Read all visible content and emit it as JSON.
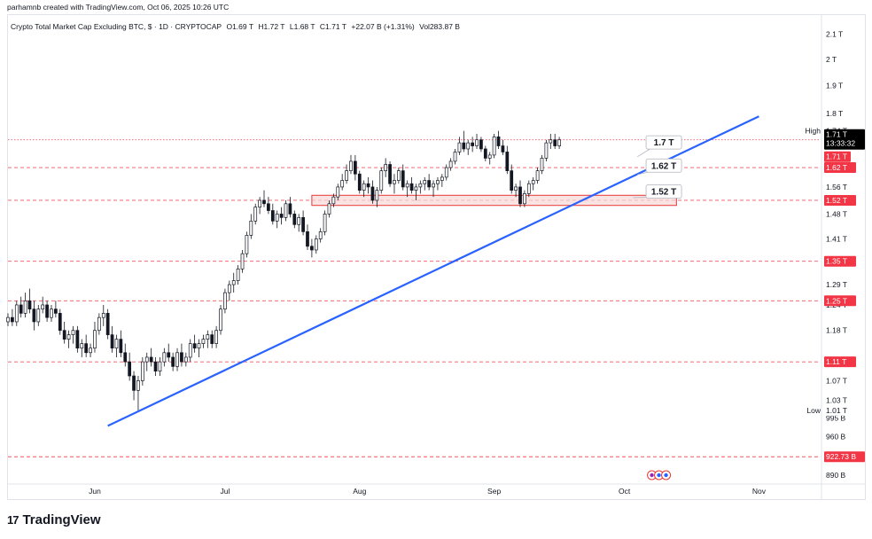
{
  "header": {
    "created_text": "parhamnb created with TradingView.com, Oct 06, 2025 10:26 UTC"
  },
  "legend": {
    "title": "Crypto Total Market Cap Excluding BTC, $ · 1D · CRYPTOCAP",
    "open": "O1.69 T",
    "high": "H1.72 T",
    "low": "L1.68 T",
    "close": "C1.71 T",
    "change": "+22.07 B (+1.31%)",
    "volume": "Vol283.87 B"
  },
  "footer": {
    "logo_text": "TradingView",
    "logo_mark": "17"
  },
  "colors": {
    "up": "#131722",
    "down": "#131722",
    "trendline": "#2962ff",
    "level_line": "#f23645",
    "zone_fill": "#f8d7d7",
    "zone_border": "#e53935",
    "callout_border": "#b2b5be"
  },
  "chart_data": {
    "type": "candlestick",
    "y_scale": "log",
    "ylim": [
      0.875,
      2.18
    ],
    "x_range": [
      "2025-05-12",
      "2025-11-15"
    ],
    "x_ticks": [
      {
        "date": "2025-06-01",
        "label": "Jun"
      },
      {
        "date": "2025-07-01",
        "label": "Jul"
      },
      {
        "date": "2025-08-01",
        "label": "Aug"
      },
      {
        "date": "2025-09-01",
        "label": "Sep"
      },
      {
        "date": "2025-10-01",
        "label": "Oct"
      },
      {
        "date": "2025-11-01",
        "label": "Nov"
      }
    ],
    "y_ticks": [
      {
        "value": 2.1,
        "label": "2.1 T"
      },
      {
        "value": 2.0,
        "label": "2 T"
      },
      {
        "value": 1.9,
        "label": "1.9 T"
      },
      {
        "value": 1.8,
        "label": "1.8 T"
      },
      {
        "value": 1.56,
        "label": "1.56 T"
      },
      {
        "value": 1.48,
        "label": "1.48 T"
      },
      {
        "value": 1.41,
        "label": "1.41 T"
      },
      {
        "value": 1.29,
        "label": "1.29 T"
      },
      {
        "value": 1.24,
        "label": "1.24 T"
      },
      {
        "value": 1.18,
        "label": "1.18 T"
      },
      {
        "value": 1.07,
        "label": "1.07 T"
      },
      {
        "value": 1.03,
        "label": "1.03 T"
      },
      {
        "value": 0.995,
        "label": "995 B"
      },
      {
        "value": 0.96,
        "label": "960 B"
      },
      {
        "value": 0.89,
        "label": "890 B"
      }
    ],
    "price_labels": [
      {
        "value": 1.74,
        "label": "1.74 T",
        "prefix": "High",
        "style": "plain"
      },
      {
        "value": 1.62,
        "label": "1.62 T",
        "style": "red"
      },
      {
        "value": 1.52,
        "label": "1.52 T",
        "style": "red"
      },
      {
        "value": 1.35,
        "label": "1.35 T",
        "style": "red"
      },
      {
        "value": 1.25,
        "label": "1.25 T",
        "style": "red"
      },
      {
        "value": 1.11,
        "label": "1.11 T",
        "style": "red"
      },
      {
        "value": 1.01,
        "label": "1.01 T",
        "prefix": "Low",
        "style": "plain"
      },
      {
        "value": 0.9227,
        "label": "922.73 B",
        "style": "red"
      }
    ],
    "current_price": {
      "value": 1.71,
      "label": "1.71 T",
      "countdown": "13:33:32"
    },
    "current_price_tag": {
      "label": "1.71 T"
    },
    "horizontal_levels": [
      1.71,
      1.62,
      1.52,
      1.35,
      1.25,
      1.11,
      0.9227
    ],
    "zone": {
      "from": "2025-07-21",
      "to": "2025-10-13",
      "low": 1.505,
      "high": 1.535
    },
    "trendline": {
      "start": [
        "2025-06-04",
        0.98
      ],
      "end": [
        "2025-11-01",
        1.79
      ]
    },
    "callouts": [
      {
        "label": "1.7 T",
        "date": "2025-10-06",
        "value": 1.7,
        "anchor_date": "2025-10-04",
        "anchor_value": 1.655
      },
      {
        "label": "1.62 T",
        "date": "2025-10-06",
        "value": 1.625,
        "anchor_date": "2025-10-04",
        "anchor_value": 1.598
      },
      {
        "label": "1.52 T",
        "date": "2025-10-06",
        "value": 1.545,
        "anchor_date": "2025-10-03",
        "anchor_value": 1.528
      }
    ],
    "series": [
      {
        "name": "",
        "start_date": "2025-05-12",
        "ohlc": [
          [
            1.2,
            1.22,
            1.19,
            1.21
          ],
          [
            1.21,
            1.23,
            1.19,
            1.2
          ],
          [
            1.2,
            1.25,
            1.19,
            1.24
          ],
          [
            1.24,
            1.26,
            1.21,
            1.22
          ],
          [
            1.22,
            1.27,
            1.21,
            1.25
          ],
          [
            1.25,
            1.28,
            1.22,
            1.23
          ],
          [
            1.23,
            1.25,
            1.18,
            1.2
          ],
          [
            1.2,
            1.24,
            1.19,
            1.23
          ],
          [
            1.23,
            1.26,
            1.22,
            1.24
          ],
          [
            1.24,
            1.25,
            1.2,
            1.21
          ],
          [
            1.21,
            1.24,
            1.2,
            1.23
          ],
          [
            1.23,
            1.25,
            1.21,
            1.22
          ],
          [
            1.22,
            1.23,
            1.17,
            1.18
          ],
          [
            1.18,
            1.2,
            1.15,
            1.16
          ],
          [
            1.16,
            1.18,
            1.14,
            1.17
          ],
          [
            1.17,
            1.19,
            1.15,
            1.18
          ],
          [
            1.18,
            1.19,
            1.13,
            1.14
          ],
          [
            1.14,
            1.16,
            1.12,
            1.15
          ],
          [
            1.15,
            1.17,
            1.12,
            1.13
          ],
          [
            1.13,
            1.15,
            1.12,
            1.14
          ],
          [
            1.14,
            1.2,
            1.13,
            1.18
          ],
          [
            1.18,
            1.22,
            1.17,
            1.21
          ],
          [
            1.21,
            1.24,
            1.19,
            1.22
          ],
          [
            1.22,
            1.23,
            1.16,
            1.17
          ],
          [
            1.17,
            1.19,
            1.13,
            1.14
          ],
          [
            1.14,
            1.17,
            1.12,
            1.16
          ],
          [
            1.16,
            1.18,
            1.12,
            1.13
          ],
          [
            1.13,
            1.15,
            1.1,
            1.11
          ],
          [
            1.11,
            1.13,
            1.07,
            1.08
          ],
          [
            1.08,
            1.09,
            1.03,
            1.05
          ],
          [
            1.05,
            1.08,
            1.01,
            1.07
          ],
          [
            1.07,
            1.12,
            1.06,
            1.11
          ],
          [
            1.11,
            1.13,
            1.09,
            1.12
          ],
          [
            1.12,
            1.14,
            1.1,
            1.11
          ],
          [
            1.11,
            1.12,
            1.08,
            1.09
          ],
          [
            1.09,
            1.12,
            1.08,
            1.11
          ],
          [
            1.11,
            1.14,
            1.1,
            1.13
          ],
          [
            1.13,
            1.15,
            1.11,
            1.12
          ],
          [
            1.12,
            1.13,
            1.09,
            1.1
          ],
          [
            1.1,
            1.14,
            1.09,
            1.13
          ],
          [
            1.13,
            1.15,
            1.1,
            1.11
          ],
          [
            1.11,
            1.13,
            1.1,
            1.12
          ],
          [
            1.12,
            1.16,
            1.11,
            1.15
          ],
          [
            1.15,
            1.17,
            1.13,
            1.14
          ],
          [
            1.14,
            1.16,
            1.12,
            1.15
          ],
          [
            1.15,
            1.17,
            1.14,
            1.16
          ],
          [
            1.16,
            1.18,
            1.14,
            1.17
          ],
          [
            1.17,
            1.18,
            1.14,
            1.15
          ],
          [
            1.15,
            1.19,
            1.14,
            1.18
          ],
          [
            1.18,
            1.24,
            1.17,
            1.23
          ],
          [
            1.23,
            1.28,
            1.22,
            1.27
          ],
          [
            1.27,
            1.3,
            1.25,
            1.29
          ],
          [
            1.29,
            1.32,
            1.27,
            1.3
          ],
          [
            1.3,
            1.34,
            1.29,
            1.33
          ],
          [
            1.33,
            1.38,
            1.32,
            1.37
          ],
          [
            1.37,
            1.43,
            1.36,
            1.42
          ],
          [
            1.42,
            1.48,
            1.41,
            1.46
          ],
          [
            1.46,
            1.51,
            1.45,
            1.5
          ],
          [
            1.5,
            1.53,
            1.48,
            1.52
          ],
          [
            1.52,
            1.55,
            1.5,
            1.51
          ],
          [
            1.51,
            1.53,
            1.48,
            1.49
          ],
          [
            1.49,
            1.51,
            1.45,
            1.46
          ],
          [
            1.46,
            1.49,
            1.44,
            1.48
          ],
          [
            1.48,
            1.5,
            1.45,
            1.47
          ],
          [
            1.47,
            1.52,
            1.46,
            1.51
          ],
          [
            1.51,
            1.53,
            1.47,
            1.48
          ],
          [
            1.48,
            1.49,
            1.44,
            1.45
          ],
          [
            1.45,
            1.48,
            1.43,
            1.47
          ],
          [
            1.47,
            1.49,
            1.42,
            1.43
          ],
          [
            1.43,
            1.45,
            1.38,
            1.39
          ],
          [
            1.39,
            1.41,
            1.36,
            1.38
          ],
          [
            1.38,
            1.42,
            1.37,
            1.41
          ],
          [
            1.41,
            1.44,
            1.4,
            1.43
          ],
          [
            1.43,
            1.49,
            1.42,
            1.48
          ],
          [
            1.48,
            1.52,
            1.47,
            1.51
          ],
          [
            1.51,
            1.54,
            1.5,
            1.53
          ],
          [
            1.53,
            1.57,
            1.52,
            1.56
          ],
          [
            1.56,
            1.6,
            1.55,
            1.58
          ],
          [
            1.58,
            1.63,
            1.57,
            1.61
          ],
          [
            1.61,
            1.66,
            1.6,
            1.64
          ],
          [
            1.64,
            1.66,
            1.58,
            1.6
          ],
          [
            1.6,
            1.61,
            1.54,
            1.55
          ],
          [
            1.55,
            1.58,
            1.53,
            1.57
          ],
          [
            1.57,
            1.59,
            1.54,
            1.56
          ],
          [
            1.56,
            1.58,
            1.51,
            1.52
          ],
          [
            1.52,
            1.56,
            1.5,
            1.55
          ],
          [
            1.55,
            1.62,
            1.54,
            1.61
          ],
          [
            1.61,
            1.65,
            1.59,
            1.63
          ],
          [
            1.63,
            1.64,
            1.56,
            1.57
          ],
          [
            1.57,
            1.6,
            1.54,
            1.58
          ],
          [
            1.58,
            1.62,
            1.57,
            1.61
          ],
          [
            1.61,
            1.63,
            1.55,
            1.56
          ],
          [
            1.56,
            1.58,
            1.53,
            1.57
          ],
          [
            1.57,
            1.59,
            1.54,
            1.55
          ],
          [
            1.55,
            1.57,
            1.52,
            1.56
          ],
          [
            1.56,
            1.58,
            1.54,
            1.57
          ],
          [
            1.57,
            1.59,
            1.55,
            1.58
          ],
          [
            1.58,
            1.6,
            1.55,
            1.56
          ],
          [
            1.56,
            1.58,
            1.53,
            1.57
          ],
          [
            1.57,
            1.59,
            1.55,
            1.58
          ],
          [
            1.58,
            1.6,
            1.56,
            1.59
          ],
          [
            1.59,
            1.63,
            1.58,
            1.62
          ],
          [
            1.62,
            1.65,
            1.61,
            1.64
          ],
          [
            1.64,
            1.68,
            1.63,
            1.67
          ],
          [
            1.67,
            1.72,
            1.66,
            1.7
          ],
          [
            1.7,
            1.74,
            1.67,
            1.68
          ],
          [
            1.68,
            1.71,
            1.66,
            1.7
          ],
          [
            1.7,
            1.72,
            1.67,
            1.69
          ],
          [
            1.69,
            1.73,
            1.68,
            1.71
          ],
          [
            1.71,
            1.72,
            1.67,
            1.68
          ],
          [
            1.68,
            1.69,
            1.64,
            1.65
          ],
          [
            1.65,
            1.67,
            1.63,
            1.66
          ],
          [
            1.66,
            1.73,
            1.65,
            1.72
          ],
          [
            1.72,
            1.74,
            1.68,
            1.69
          ],
          [
            1.69,
            1.71,
            1.66,
            1.67
          ],
          [
            1.67,
            1.69,
            1.6,
            1.61
          ],
          [
            1.61,
            1.63,
            1.54,
            1.55
          ],
          [
            1.55,
            1.57,
            1.53,
            1.56
          ],
          [
            1.56,
            1.58,
            1.5,
            1.51
          ],
          [
            1.51,
            1.55,
            1.5,
            1.54
          ],
          [
            1.54,
            1.58,
            1.53,
            1.57
          ],
          [
            1.57,
            1.59,
            1.55,
            1.58
          ],
          [
            1.58,
            1.62,
            1.57,
            1.61
          ],
          [
            1.61,
            1.66,
            1.6,
            1.65
          ],
          [
            1.65,
            1.71,
            1.64,
            1.7
          ],
          [
            1.7,
            1.73,
            1.68,
            1.71
          ],
          [
            1.71,
            1.73,
            1.68,
            1.69
          ],
          [
            1.69,
            1.72,
            1.68,
            1.71
          ]
        ]
      }
    ],
    "event_badges": {
      "date": "2025-10-01",
      "count": 3
    }
  }
}
